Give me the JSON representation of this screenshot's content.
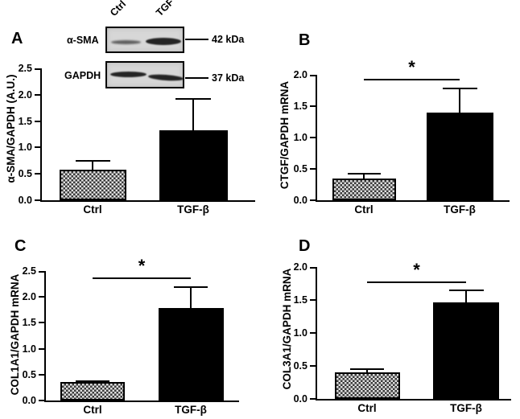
{
  "chart_data": [
    {
      "type": "bar",
      "panel": "A",
      "categories": [
        "Ctrl",
        "TGF-β"
      ],
      "values": [
        0.58,
        1.33
      ],
      "errors_upper": [
        0.18,
        0.6
      ],
      "ylabel": "α-SMA/GAPDH (A.U.)",
      "xlabel": "",
      "ylim": [
        0,
        2.5
      ],
      "yticks": [
        0,
        0.5,
        1,
        1.5,
        2,
        2.5
      ],
      "bar_styles": [
        "hatched",
        "solid"
      ],
      "significance": null,
      "grid": false,
      "legend": false
    },
    {
      "type": "bar",
      "panel": "B",
      "categories": [
        "Ctrl",
        "TGF-β"
      ],
      "values": [
        0.34,
        1.4
      ],
      "errors_upper": [
        0.1,
        0.4
      ],
      "ylabel": "CTGF/GAPDH mRNA",
      "xlabel": "",
      "ylim": [
        0,
        2.0
      ],
      "yticks": [
        0,
        0.5,
        1,
        1.5,
        2
      ],
      "bar_styles": [
        "hatched",
        "solid"
      ],
      "significance": {
        "label": "*",
        "y": 1.93
      },
      "grid": false,
      "legend": false
    },
    {
      "type": "bar",
      "panel": "C",
      "categories": [
        "Ctrl",
        "TGF-β"
      ],
      "values": [
        0.35,
        1.79
      ],
      "errors_upper": [
        0.04,
        0.41
      ],
      "ylabel": "COL1A1/GAPDH mRNA",
      "xlabel": "",
      "ylim": [
        0,
        2.5
      ],
      "yticks": [
        0,
        0.5,
        1,
        1.5,
        2,
        2.5
      ],
      "bar_styles": [
        "hatched",
        "solid"
      ],
      "significance": {
        "label": "*",
        "y": 2.37
      },
      "grid": false,
      "legend": false
    },
    {
      "type": "bar",
      "panel": "D",
      "categories": [
        "Ctrl",
        "TGF-β"
      ],
      "values": [
        0.4,
        1.46
      ],
      "errors_upper": [
        0.06,
        0.2
      ],
      "ylabel": "COL3A1/GAPDH mRNA",
      "xlabel": "",
      "ylim": [
        0,
        2.0
      ],
      "yticks": [
        0,
        0.5,
        1,
        1.5,
        2
      ],
      "bar_styles": [
        "hatched",
        "solid"
      ],
      "significance": {
        "label": "*",
        "y": 1.78
      },
      "grid": false,
      "legend": false
    }
  ],
  "blot": {
    "lane_labels": [
      "Ctrl",
      "TGF"
    ],
    "rows": [
      {
        "antibody": "α-SMA",
        "marker": "42 kDa"
      },
      {
        "antibody": "GAPDH",
        "marker": "37 kDa"
      }
    ]
  },
  "colors": {
    "background": "#ffffff",
    "bar_solid": "#000000",
    "bar_hatch_dark": "#3a3a3a",
    "bar_hatch_light": "#dedede",
    "axis": "#000000",
    "blot_membrane": "#d7d7d7"
  }
}
